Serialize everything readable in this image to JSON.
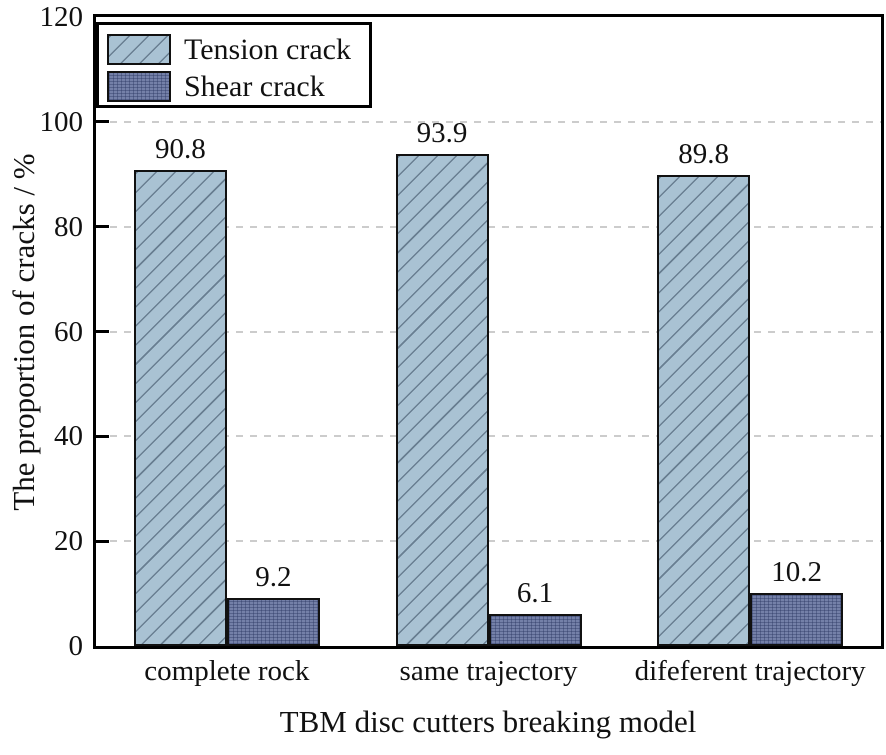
{
  "chart_data": {
    "type": "bar",
    "title": "",
    "xlabel": "TBM disc cutters breaking model",
    "ylabel": "The proportion of cracks / %",
    "categories": [
      "complete rock",
      "same trajectory",
      "difeferent trajectory"
    ],
    "series": [
      {
        "name": "Tension crack",
        "values": [
          90.8,
          93.9,
          89.8
        ],
        "color": "#a9c2d3",
        "hatch": "diagonal",
        "edge_color": "#111111"
      },
      {
        "name": "Shear crack",
        "values": [
          9.2,
          6.1,
          10.2
        ],
        "color": "#7480a8",
        "hatch": "dense-grid",
        "edge_color": "#111111"
      }
    ],
    "value_labels": [
      [
        "90.8",
        "9.2"
      ],
      [
        "93.9",
        "6.1"
      ],
      [
        "89.8",
        "10.2"
      ]
    ],
    "ylim": [
      0,
      120
    ],
    "yticks": [
      0,
      20,
      40,
      60,
      80,
      100,
      120
    ],
    "grid": "horizontal-dashed",
    "gridline_color": "#cccccc",
    "legend_position": "upper-left",
    "frame_color": "#000000"
  }
}
